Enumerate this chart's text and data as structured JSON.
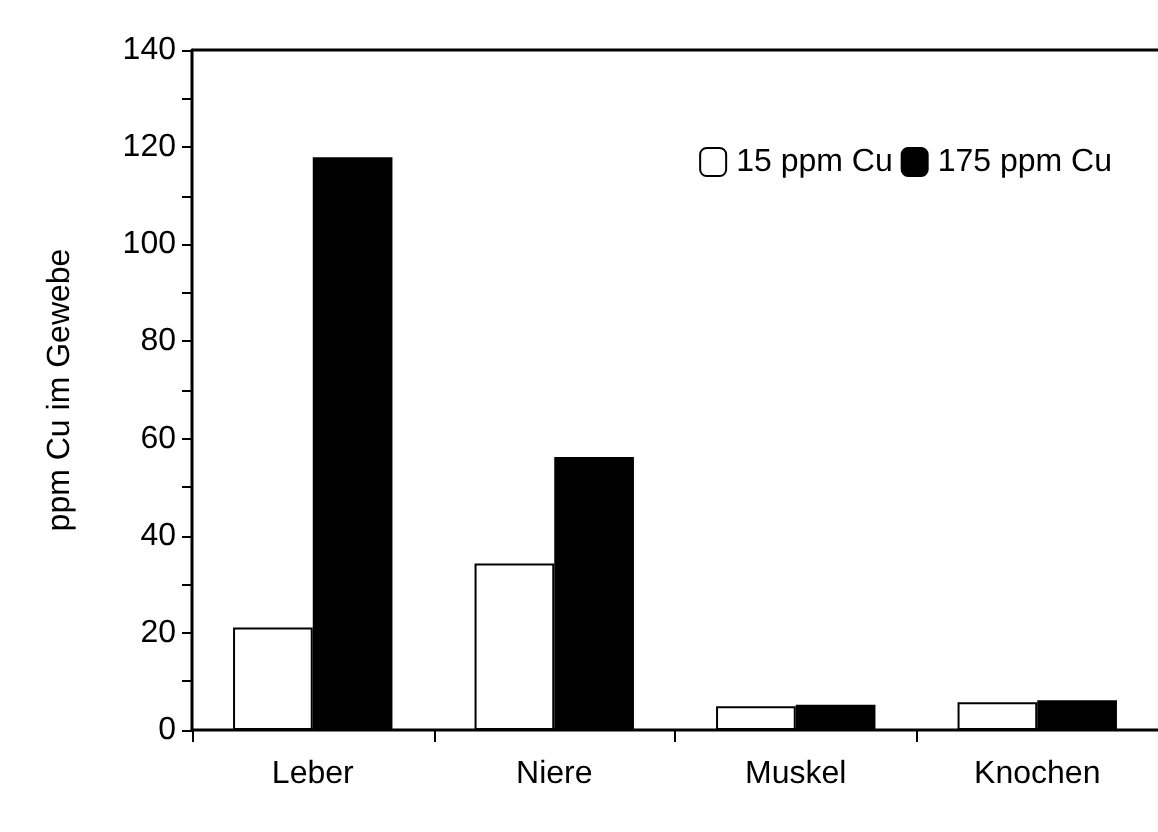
{
  "chart_data": {
    "type": "bar",
    "ylabel": "ppm Cu im Gewebe",
    "categories": [
      "Leber",
      "Niere",
      "Muskel",
      "Knochen"
    ],
    "series": [
      {
        "name": "15 ppm Cu",
        "color": "#ffffff",
        "values": [
          21.1,
          34.3,
          4.9,
          5.7
        ]
      },
      {
        "name": "175 ppm Cu",
        "color": "#000000",
        "values": [
          117.9,
          56.2,
          5.2,
          6.1
        ]
      }
    ],
    "ylim": [
      0,
      140
    ],
    "yticks": [
      0,
      {
        "value": 10,
        "label": null
      },
      20,
      {
        "value": 30,
        "label": null
      },
      40,
      {
        "value": 50,
        "label": null
      },
      60,
      {
        "value": 70,
        "label": null
      },
      80,
      {
        "value": 90,
        "label": null
      },
      100,
      {
        "value": 110,
        "label": null
      },
      120,
      {
        "value": 130,
        "label": null
      },
      140
    ],
    "grid": false,
    "legend": "top right"
  }
}
